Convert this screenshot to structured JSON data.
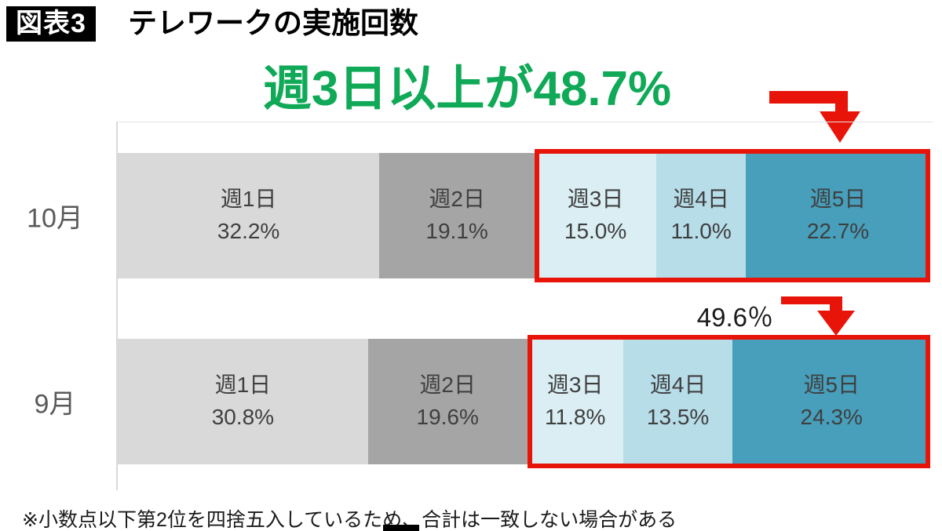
{
  "header": {
    "badge": "図表3",
    "title": "テレワークの実施回数"
  },
  "annotations": {
    "top_label": "週3日以上が48.7%",
    "mid_label": "49.6％"
  },
  "footnote": "※小数点以下第2位を四捨五入しているため、合計は一致しない場合がある",
  "colors": {
    "annotation_green": "#0fa957",
    "arrow_red": "#e81409",
    "highlight_border_red": "#e81409",
    "category_label_gray": "#595959",
    "segment_text": "#3f3f3f"
  },
  "chart_data": {
    "type": "bar",
    "stacked": true,
    "orientation": "horizontal",
    "unit": "%",
    "xlim": [
      0,
      100
    ],
    "categories": [
      "10月",
      "9月"
    ],
    "series": [
      {
        "name": "週1日",
        "color": "#d9d9d9",
        "values": [
          32.2,
          30.8
        ]
      },
      {
        "name": "週2日",
        "color": "#a5a5a5",
        "values": [
          19.1,
          19.6
        ]
      },
      {
        "name": "週3日",
        "color": "#daeef3",
        "values": [
          15.0,
          11.8
        ]
      },
      {
        "name": "週4日",
        "color": "#b7dde9",
        "values": [
          11.0,
          13.5
        ]
      },
      {
        "name": "週5日",
        "color": "#479fbc",
        "values": [
          22.7,
          24.3
        ]
      }
    ],
    "highlight": {
      "from_series_index": 2,
      "totals": [
        48.7,
        49.6
      ],
      "border_color": "#e81409",
      "note": "週3日+週4日+週5日 segments outlined in red for both rows"
    },
    "legend": "none",
    "value_labels": "segment name above percentage, centered in each segment"
  }
}
